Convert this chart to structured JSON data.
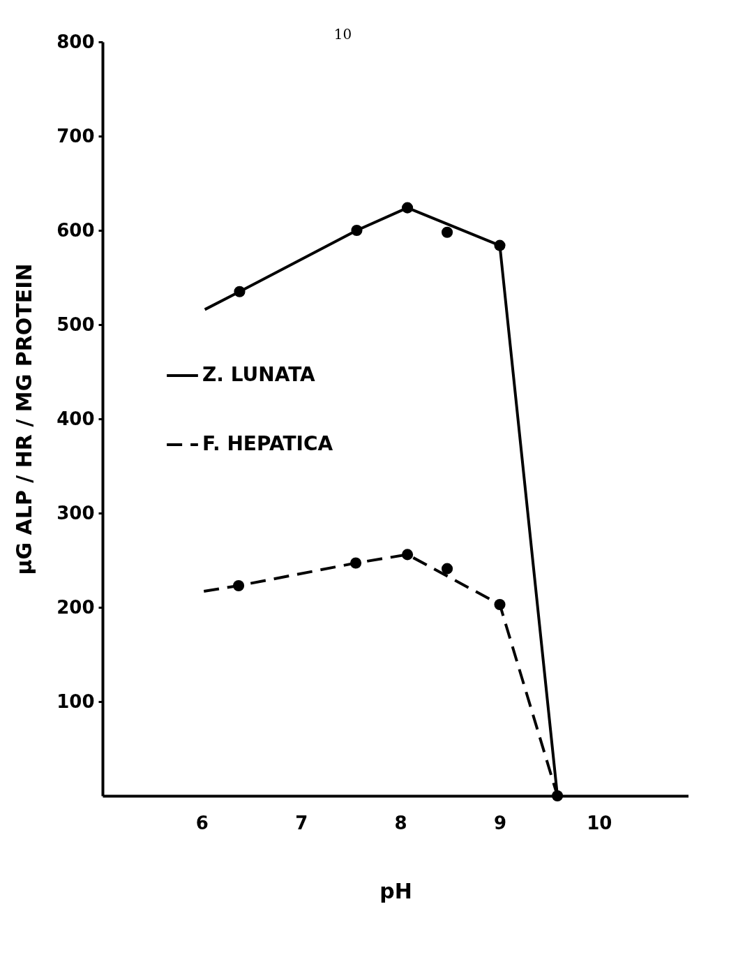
{
  "chart_data": {
    "type": "line",
    "xlabel": "pH",
    "ylabel": "μG ALP / HR / MG PROTEIN",
    "annotations": [
      "10"
    ],
    "xlim": [
      5,
      10.9
    ],
    "xticks": [
      6,
      7,
      8,
      9,
      10
    ],
    "ylim": [
      0,
      800
    ],
    "yticks": [
      100,
      200,
      300,
      400,
      500,
      600,
      700,
      800
    ],
    "grid": false,
    "legend": "left",
    "marker": "circle",
    "series": [
      {
        "name": "Z. LUNATA",
        "color": "#000000",
        "line_style": "solid",
        "marker": "none",
        "x": [
          6.03,
          6.38,
          7.56,
          8.07,
          9.0,
          9.58
        ],
        "values": [
          516,
          535,
          600,
          624,
          584,
          0
        ]
      },
      {
        "name": "F. HEPATICA",
        "color": "#000000",
        "line_style": "dashed",
        "marker": "none",
        "x": [
          6.02,
          6.37,
          7.55,
          8.07,
          9.0,
          9.58
        ],
        "values": [
          217,
          223,
          247,
          256,
          203,
          0
        ]
      },
      {
        "type": "scatter",
        "color": "#000000",
        "x": [
          6.38,
          7.56,
          8.07,
          8.47,
          9.0,
          9.58
        ],
        "values": [
          535,
          600,
          624,
          598,
          584,
          0
        ]
      },
      {
        "type": "scatter",
        "color": "#000000",
        "x": [
          6.37,
          7.55,
          8.07,
          8.47,
          9.0
        ],
        "values": [
          223,
          247,
          256,
          241,
          203
        ]
      }
    ]
  }
}
